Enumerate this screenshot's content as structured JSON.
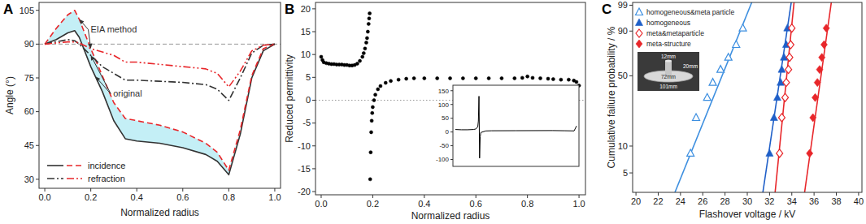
{
  "chart_data": [
    {
      "type": "line",
      "title": "A",
      "x_label": "Normalized radius",
      "y_label": "Angle (°)",
      "x": [
        0,
        0.05,
        0.1,
        0.13,
        0.15,
        0.2,
        0.25,
        0.3,
        0.35,
        0.4,
        0.5,
        0.6,
        0.7,
        0.75,
        0.8,
        0.85,
        0.9,
        0.95,
        1
      ],
      "series": [
        {
          "name": "incidence",
          "color": "#333333",
          "line_style": "solid",
          "values": [
            90,
            92,
            95,
            96,
            93,
            80,
            69,
            56,
            48,
            47,
            46,
            44,
            41,
            38,
            32,
            50,
            75,
            87,
            90
          ]
        },
        {
          "name": "incidence",
          "color": "#e8262a",
          "line_style": "dashed",
          "values": [
            90,
            97,
            103,
            105,
            101,
            88,
            76,
            64,
            57,
            56,
            54,
            51,
            46,
            42,
            34,
            52,
            76,
            88,
            90
          ]
        },
        {
          "name": "refraction",
          "color": "#333333",
          "line_style": "dashdot",
          "values": [
            90,
            91,
            92,
            91.5,
            90,
            85,
            80,
            77,
            74,
            74,
            73.5,
            73,
            72,
            70,
            65,
            75,
            86,
            89.5,
            90
          ]
        },
        {
          "name": "refraction",
          "color": "#e8262a",
          "line_style": "dashdotdot",
          "values": [
            90,
            90.5,
            91,
            91,
            90.5,
            88,
            86.5,
            85,
            82,
            82,
            81,
            80,
            79,
            77,
            71,
            78,
            87,
            89.5,
            90
          ]
        }
      ],
      "xlim": [
        -0.025,
        1.025
      ],
      "ylim": [
        26,
        108.5
      ],
      "xticks": [
        {
          "value": 0,
          "label": "0.0"
        },
        0.2,
        0.4,
        0.6,
        0.8,
        {
          "value": 1,
          "label": "1.0"
        }
      ],
      "yticks": [
        30,
        45,
        60,
        75,
        90,
        105
      ],
      "hline": 90,
      "annotations": [
        {
          "text": "EIA method",
          "x": 0.3,
          "y": 96.5,
          "arrows": [
            [
              0.15,
              101
            ],
            [
              0.2,
              88
            ]
          ]
        },
        {
          "text": "original",
          "x": 0.36,
          "y": 68,
          "arrows": [
            [
              0.22,
              75.6
            ],
            [
              0.2,
              85
            ]
          ]
        }
      ],
      "legend": "lower left"
    },
    {
      "type": "scatter",
      "title": "B",
      "x_label": "Normalized radius",
      "y_label": "Reduced permittivity",
      "series": [
        {
          "color": "#000000",
          "marker": "circle",
          "x": [
            0,
            0.005,
            0.01,
            0.02,
            0.03,
            0.04,
            0.05,
            0.06,
            0.07,
            0.08,
            0.09,
            0.1,
            0.11,
            0.12,
            0.13,
            0.14,
            0.15,
            0.16,
            0.165,
            0.17,
            0.175,
            0.178,
            0.181,
            0.184,
            0.186,
            0.188,
            0.19,
            0.192,
            0.194,
            0.196,
            0.198,
            0.2,
            0.205,
            0.21,
            0.22,
            0.23,
            0.25,
            0.27,
            0.3,
            0.33,
            0.36,
            0.4,
            0.45,
            0.5,
            0.55,
            0.6,
            0.65,
            0.7,
            0.75,
            0.78,
            0.8,
            0.82,
            0.85,
            0.88,
            0.9,
            0.93,
            0.96,
            0.98,
            0.99,
            1
          ],
          "values": [
            9.5,
            8.8,
            8.3,
            8.1,
            8.0,
            7.9,
            7.9,
            7.8,
            7.8,
            7.8,
            7.7,
            7.7,
            7.6,
            7.6,
            7.7,
            8.0,
            8.6,
            9.5,
            10.3,
            11.3,
            12.6,
            13.6,
            15.0,
            16.7,
            17.9,
            19.0,
            -17.3,
            -11.4,
            -7.0,
            -4.5,
            -2.8,
            -1.5,
            0.0,
            1.2,
            2.4,
            3.1,
            3.8,
            4.2,
            4.5,
            4.7,
            4.8,
            4.8,
            4.8,
            4.8,
            4.8,
            4.8,
            4.8,
            4.8,
            4.8,
            4.9,
            5.2,
            4.9,
            4.8,
            4.7,
            4.6,
            4.5,
            4.5,
            4.3,
            4.0,
            3.2
          ]
        }
      ],
      "xlim": [
        -0.022,
        1.025
      ],
      "ylim": [
        -20.7,
        21.4
      ],
      "xticks": [
        {
          "value": 0,
          "label": "0.0"
        },
        0.2,
        0.4,
        0.6,
        0.8,
        {
          "value": 1,
          "label": "1.0"
        }
      ],
      "yticks": [
        -20,
        -15,
        -10,
        -5,
        0,
        5,
        10,
        15,
        20
      ],
      "hline": 0
    },
    {
      "type": "line",
      "series": [
        {
          "color": "#000000",
          "x": [
            0,
            0.05,
            0.1,
            0.15,
            0.17,
            0.185,
            0.19,
            0.195,
            0.2,
            0.205,
            0.21,
            0.25,
            0.3,
            0.5,
            0.8,
            0.9,
            0.98,
            1
          ],
          "values": [
            9,
            8,
            8,
            9,
            11,
            19,
            40,
            130,
            -95,
            -18,
            -2,
            3.8,
            4.5,
            4.8,
            5.2,
            4.6,
            4,
            22
          ]
        }
      ],
      "xlim": [
        -0.02,
        1.02
      ],
      "ylim": [
        -125,
        170
      ],
      "yticks": [
        -100,
        -50,
        0,
        50,
        100,
        150
      ],
      "tick_labels": "y"
    },
    {
      "type": "weibull",
      "title": "C",
      "x_label": "Flashover voltage / kV",
      "y_label": "Cumulative failure probability / %",
      "series": [
        {
          "name": "homogeneous&meta particle",
          "type": "scatter",
          "marker": "open-triangle",
          "color": "#3d8fe0",
          "x": [
            24.9,
            25.4,
            26.4,
            26.9,
            27.6,
            28.3,
            29.0,
            29.6
          ],
          "values": [
            8.3,
            20.2,
            32.1,
            44.0,
            56.0,
            67.9,
            79.8,
            91.7
          ]
        },
        {
          "name": "homogeneous",
          "type": "scatter",
          "marker": "triangle",
          "color": "#1f5fc8",
          "x": [
            32.0,
            32.4,
            32.7,
            33.0,
            33.1,
            33.3,
            33.5,
            33.6
          ],
          "values": [
            8.3,
            20.2,
            32.1,
            44.0,
            56.0,
            67.9,
            79.8,
            91.7
          ]
        },
        {
          "name": "meta&metaparticle",
          "type": "scatter",
          "marker": "open-diamond",
          "color": "#e8262a",
          "x": [
            32.9,
            33.1,
            33.4,
            33.5,
            33.7,
            33.8,
            33.9,
            34.0
          ],
          "values": [
            8.3,
            20.2,
            32.1,
            44.0,
            56.0,
            67.9,
            79.8,
            91.7
          ]
        },
        {
          "name": "meta-structure",
          "type": "scatter",
          "marker": "diamond",
          "color": "#e8262a",
          "x": [
            35.6,
            35.9,
            36.1,
            36.3,
            36.5,
            36.7,
            36.9,
            37.1
          ],
          "values": [
            8.3,
            20.2,
            32.1,
            44.0,
            56.0,
            67.9,
            79.8,
            91.7
          ]
        },
        {
          "type": "line",
          "color": "#3d8fe0",
          "x": [
            23.5,
            30.4
          ],
          "values": [
            3,
            99.3
          ]
        },
        {
          "type": "line",
          "color": "#1f5fc8",
          "x": [
            31.4,
            33.95
          ],
          "values": [
            3,
            99.3
          ]
        },
        {
          "type": "line",
          "color": "#e8262a",
          "x": [
            32.5,
            34.2
          ],
          "values": [
            3,
            99.3
          ]
        },
        {
          "type": "line",
          "color": "#e8262a",
          "x": [
            35.15,
            37.55
          ],
          "values": [
            3,
            99.3
          ]
        }
      ],
      "xlim": [
        19.7,
        40.3
      ],
      "ylim": [
        3,
        99.3
      ],
      "xticks": [
        20,
        22,
        24,
        26,
        28,
        30,
        32,
        34,
        36,
        38,
        40
      ],
      "yticks": [
        5,
        10,
        50,
        90,
        99
      ],
      "annotations": [
        {
          "text": "12mm"
        },
        {
          "text": "20mm"
        },
        {
          "text": "72mm"
        },
        {
          "text": "101mm"
        }
      ],
      "legend": "upper left"
    }
  ]
}
